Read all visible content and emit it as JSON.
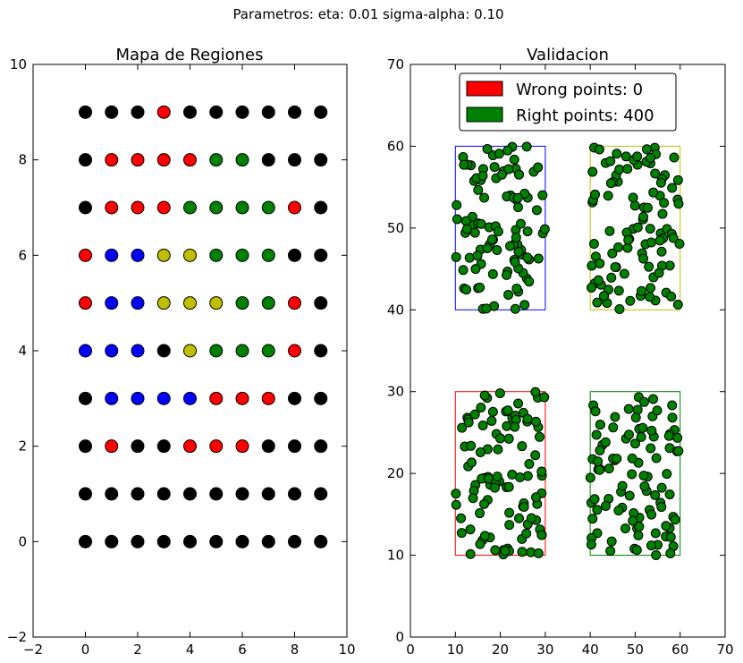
{
  "suptitle": "Parametros: eta: 0.01 sigma-alpha: 0.10",
  "colors": {
    "black": "#000000",
    "red": "#ff0000",
    "blue": "#0000ff",
    "yellow": "#bfbf00",
    "green": "#008000"
  },
  "chart_data": [
    {
      "type": "scatter",
      "title": "Mapa de Regiones",
      "xlim": [
        -2,
        10
      ],
      "ylim": [
        -2,
        10
      ],
      "xticks": [
        "−2",
        "0",
        "2",
        "4",
        "6",
        "8",
        "10"
      ],
      "yticks": [
        "−2",
        "0",
        "2",
        "4",
        "6",
        "8",
        "10"
      ],
      "xtick_values": [
        -2,
        0,
        2,
        4,
        6,
        8,
        10
      ],
      "ytick_values": [
        -2,
        0,
        2,
        4,
        6,
        8,
        10
      ],
      "grid_colors": [
        [
          "K",
          "K",
          "K",
          "K",
          "K",
          "K",
          "K",
          "K",
          "K",
          "K"
        ],
        [
          "K",
          "K",
          "K",
          "K",
          "K",
          "K",
          "K",
          "K",
          "K",
          "K"
        ],
        [
          "K",
          "R",
          "K",
          "K",
          "R",
          "R",
          "R",
          "K",
          "K",
          "K"
        ],
        [
          "K",
          "B",
          "B",
          "B",
          "B",
          "R",
          "R",
          "R",
          "K",
          "K"
        ],
        [
          "B",
          "B",
          "B",
          "K",
          "Y",
          "G",
          "G",
          "G",
          "R",
          "K"
        ],
        [
          "R",
          "B",
          "B",
          "Y",
          "Y",
          "Y",
          "G",
          "G",
          "R",
          "K"
        ],
        [
          "R",
          "B",
          "B",
          "Y",
          "Y",
          "G",
          "G",
          "G",
          "K",
          "K"
        ],
        [
          "K",
          "R",
          "R",
          "R",
          "G",
          "G",
          "G",
          "G",
          "R",
          "K"
        ],
        [
          "K",
          "R",
          "R",
          "R",
          "R",
          "G",
          "G",
          "K",
          "K",
          "K"
        ],
        [
          "K",
          "K",
          "K",
          "R",
          "K",
          "K",
          "K",
          "K",
          "K",
          "K"
        ]
      ]
    },
    {
      "type": "scatter",
      "title": "Validacion",
      "xlim": [
        0,
        70
      ],
      "ylim": [
        0,
        70
      ],
      "xticks": [
        "0",
        "10",
        "20",
        "30",
        "40",
        "50",
        "60",
        "70"
      ],
      "yticks": [
        "0",
        "10",
        "20",
        "30",
        "40",
        "50",
        "60",
        "70"
      ],
      "xtick_values": [
        0,
        10,
        20,
        30,
        40,
        50,
        60,
        70
      ],
      "ytick_values": [
        0,
        10,
        20,
        30,
        40,
        50,
        60,
        70
      ],
      "regions": [
        {
          "x": [
            10,
            30
          ],
          "y": [
            40,
            60
          ],
          "color": "#0000ff"
        },
        {
          "x": [
            40,
            60
          ],
          "y": [
            40,
            60
          ],
          "color": "#bfbf00"
        },
        {
          "x": [
            10,
            30
          ],
          "y": [
            10,
            30
          ],
          "color": "#ff0000"
        },
        {
          "x": [
            40,
            60
          ],
          "y": [
            10,
            30
          ],
          "color": "#008000"
        }
      ],
      "points_per_region": 100,
      "legend": {
        "position": "top-center",
        "entries": [
          {
            "label": "Wrong points: 0",
            "color": "#ff0000"
          },
          {
            "label": "Right points: 400",
            "color": "#008000"
          }
        ]
      }
    }
  ]
}
